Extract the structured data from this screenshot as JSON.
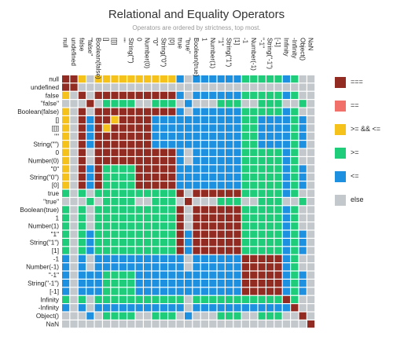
{
  "chart_data": {
    "type": "heatmap",
    "title": "Relational and Equality Operators",
    "subtitle": "Operators are ordered by strictness, top most.",
    "labels": [
      "null",
      "undefined",
      "false",
      "\"false\"",
      "Boolean(false)",
      "[]",
      "[[]]",
      "\"\"",
      "String(\"\")",
      "0",
      "Number(0)",
      "\"0\"",
      "String(\"0\")",
      "[0]",
      "true",
      "\"true\"",
      "Boolean(true)",
      "1",
      "Number(1)",
      "\"1\"",
      "String(\"1\")",
      "[1]",
      "-1",
      "Number(-1)",
      "\"-1\"",
      "String(\"-1\")",
      "[-1]",
      "Infinity",
      "-Infinity",
      "Object()",
      "NaN"
    ],
    "groups": [
      [
        0,
        1
      ],
      [
        2,
        3,
        4,
        5,
        6,
        7,
        8,
        9,
        10,
        11,
        12,
        13
      ],
      [
        14,
        15,
        16,
        17,
        18,
        19,
        20,
        21
      ],
      [
        22,
        23,
        24,
        25,
        26
      ],
      [
        27
      ],
      [
        28
      ],
      [
        29
      ],
      [
        30
      ]
    ],
    "legend": [
      {
        "key": "strict",
        "label": "===",
        "color": "#922b21"
      },
      {
        "key": "loose",
        "label": "==",
        "color": "#f1706a"
      },
      {
        "key": "both",
        "label": ">= && <=",
        "color": "#f5c11b"
      },
      {
        "key": "ge",
        "label": ">=",
        "color": "#1fcc7a"
      },
      {
        "key": "le",
        "label": "<=",
        "color": "#1e90e0"
      },
      {
        "key": "else",
        "label": "else",
        "color": "#c3c8cc"
      }
    ],
    "legend_position": "right"
  }
}
